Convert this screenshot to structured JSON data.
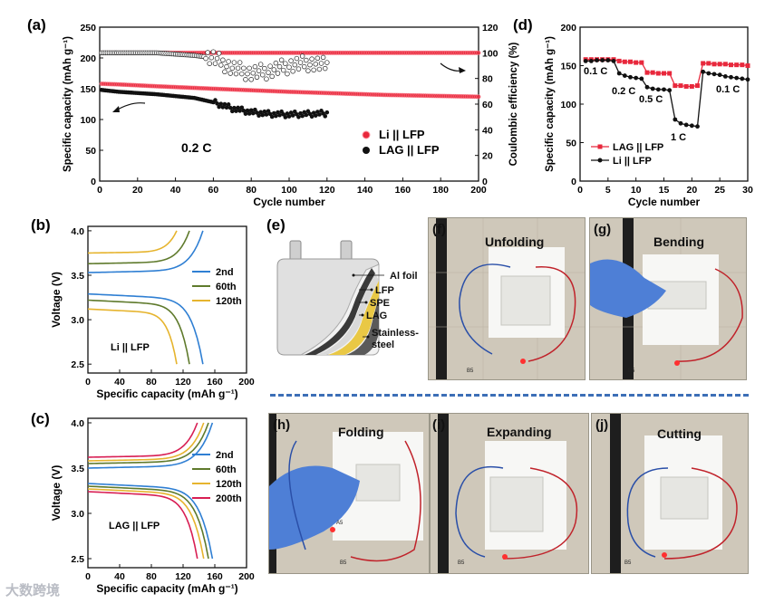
{
  "panels": {
    "a": {
      "label": "(a)"
    },
    "b": {
      "label": "(b)"
    },
    "c": {
      "label": "(c)"
    },
    "d": {
      "label": "(d)"
    },
    "e": {
      "label": "(e)"
    },
    "f": {
      "label": "(f)"
    },
    "g": {
      "label": "(g)"
    },
    "h": {
      "label": "(h)"
    },
    "i": {
      "label": "(i)"
    },
    "j": {
      "label": "(j)"
    }
  },
  "photo_titles": {
    "f": "Unfolding",
    "g": "Bending",
    "h": "Folding",
    "i": "Expanding",
    "j": "Cutting"
  },
  "photo_tags": {
    "f": "B5",
    "g": "B5",
    "h_a5": "A5",
    "h": "B5",
    "i": "B5",
    "j": "B5"
  },
  "schematic": {
    "layers": [
      "Al foil",
      "LFP",
      "SPE",
      "LAG",
      "Stainless-",
      "steel"
    ]
  },
  "watermark": "大数跨境",
  "chart_data": [
    {
      "id": "a",
      "type": "scatter",
      "xlabel": "Cycle number",
      "ylabel": "Specific capacity (mAh g⁻¹)",
      "y2label": "Coulombic efficiency (%)",
      "xlim": [
        0,
        200
      ],
      "ylim": [
        0,
        250
      ],
      "y2lim": [
        0,
        120
      ],
      "xticks": [
        0,
        20,
        40,
        60,
        80,
        100,
        120,
        140,
        160,
        180,
        200
      ],
      "yticks": [
        0,
        50,
        100,
        150,
        200,
        250
      ],
      "y2ticks": [
        0,
        20,
        40,
        60,
        80,
        100,
        120
      ],
      "annotation": "0.2 C",
      "legend": [
        "Li || LFP",
        "LAG || LFP"
      ],
      "series": [
        {
          "name": "Li || LFP",
          "color": "#e8283c",
          "axis": "capacity",
          "n": 200,
          "points": [
            [
              1,
              158
            ],
            [
              10,
              157
            ],
            [
              30,
              154
            ],
            [
              60,
              150
            ],
            [
              100,
              145
            ],
            [
              150,
              140
            ],
            [
              200,
              137
            ]
          ]
        },
        {
          "name": "Li || LFP CE",
          "color": "#e8283c",
          "axis": "efficiency",
          "n": 200,
          "points": [
            [
              1,
              100
            ],
            [
              200,
              100
            ]
          ]
        },
        {
          "name": "LAG || LFP",
          "color": "#111111",
          "axis": "capacity",
          "n": 120,
          "points": [
            [
              1,
              148
            ],
            [
              10,
              145
            ],
            [
              30,
              141
            ],
            [
              50,
              135
            ],
            [
              60,
              128
            ],
            [
              70,
              118
            ],
            [
              80,
              112
            ],
            [
              90,
              109
            ],
            [
              100,
              108
            ],
            [
              120,
              110
            ]
          ]
        },
        {
          "name": "LAG || LFP CE",
          "color": "#111111",
          "axis": "efficiency",
          "n": 120,
          "points": [
            [
              1,
              100
            ],
            [
              30,
              100
            ],
            [
              50,
              98
            ],
            [
              60,
              96
            ],
            [
              70,
              88
            ],
            [
              80,
              84
            ],
            [
              90,
              86
            ],
            [
              100,
              90
            ],
            [
              110,
              92
            ],
            [
              120,
              90
            ]
          ]
        }
      ]
    },
    {
      "id": "b",
      "type": "line",
      "xlabel": "Specific capacity (mAh g⁻¹)",
      "ylabel": "Voltage (V)",
      "xlim": [
        0,
        200
      ],
      "ylim": [
        2.4,
        4.05
      ],
      "xticks": [
        0,
        40,
        80,
        120,
        160,
        200
      ],
      "yticks": [
        2.5,
        3.0,
        3.5,
        4.0
      ],
      "annotation": "Li || LFP",
      "series": [
        {
          "name": "2nd",
          "color": "#2f7fd3",
          "capacity": 145,
          "charge": [
            3.53,
            4.0
          ],
          "discharge": [
            3.29,
            2.5
          ]
        },
        {
          "name": "60th",
          "color": "#5f7a2c",
          "capacity": 128,
          "charge": [
            3.63,
            4.0
          ],
          "discharge": [
            3.22,
            2.5
          ]
        },
        {
          "name": "120th",
          "color": "#e6b42e",
          "capacity": 112,
          "charge": [
            3.75,
            4.0
          ],
          "discharge": [
            3.12,
            2.5
          ]
        }
      ]
    },
    {
      "id": "c",
      "type": "line",
      "xlabel": "Specific capacity (mAh g⁻¹)",
      "ylabel": "Voltage (V)",
      "xlim": [
        0,
        200
      ],
      "ylim": [
        2.4,
        4.05
      ],
      "xticks": [
        0,
        40,
        80,
        120,
        160,
        200
      ],
      "yticks": [
        2.5,
        3.0,
        3.5,
        4.0
      ],
      "annotation": "LAG || LFP",
      "series": [
        {
          "name": "2nd",
          "color": "#2f7fd3",
          "capacity": 157,
          "charge": [
            3.5,
            4.0
          ],
          "discharge": [
            3.33,
            2.5
          ]
        },
        {
          "name": "60th",
          "color": "#5f7a2c",
          "capacity": 152,
          "charge": [
            3.55,
            4.0
          ],
          "discharge": [
            3.3,
            2.5
          ]
        },
        {
          "name": "120th",
          "color": "#e6b42e",
          "capacity": 146,
          "charge": [
            3.58,
            4.0
          ],
          "discharge": [
            3.27,
            2.5
          ]
        },
        {
          "name": "200th",
          "color": "#d81e53",
          "capacity": 138,
          "charge": [
            3.62,
            4.0
          ],
          "discharge": [
            3.24,
            2.5
          ]
        }
      ]
    },
    {
      "id": "d",
      "type": "line",
      "xlabel": "Cycle number",
      "ylabel": "Specific capacity (mAh g⁻¹)",
      "xlim": [
        0,
        30
      ],
      "ylim": [
        0,
        200
      ],
      "xticks": [
        0,
        5,
        10,
        15,
        20,
        25,
        30
      ],
      "yticks": [
        0,
        50,
        100,
        150,
        200
      ],
      "rate_labels": [
        "0.1 C",
        "0.2 C",
        "0.5 C",
        "1 C",
        "0.1 C"
      ],
      "series": [
        {
          "name": "LAG || LFP",
          "color": "#e8283c",
          "marker": "square",
          "values": [
            158,
            158,
            158,
            158,
            158,
            158,
            156,
            155,
            155,
            154,
            154,
            141,
            141,
            140,
            140,
            140,
            124,
            124,
            123,
            123,
            124,
            153,
            153,
            152,
            152,
            152,
            151,
            151,
            151,
            150
          ]
        },
        {
          "name": "Li || LFP",
          "color": "#111111",
          "marker": "circle",
          "values": [
            156,
            156,
            157,
            157,
            157,
            156,
            140,
            137,
            135,
            134,
            133,
            122,
            120,
            119,
            119,
            118,
            80,
            75,
            73,
            72,
            71,
            142,
            140,
            139,
            138,
            136,
            135,
            134,
            133,
            132
          ]
        }
      ]
    }
  ]
}
